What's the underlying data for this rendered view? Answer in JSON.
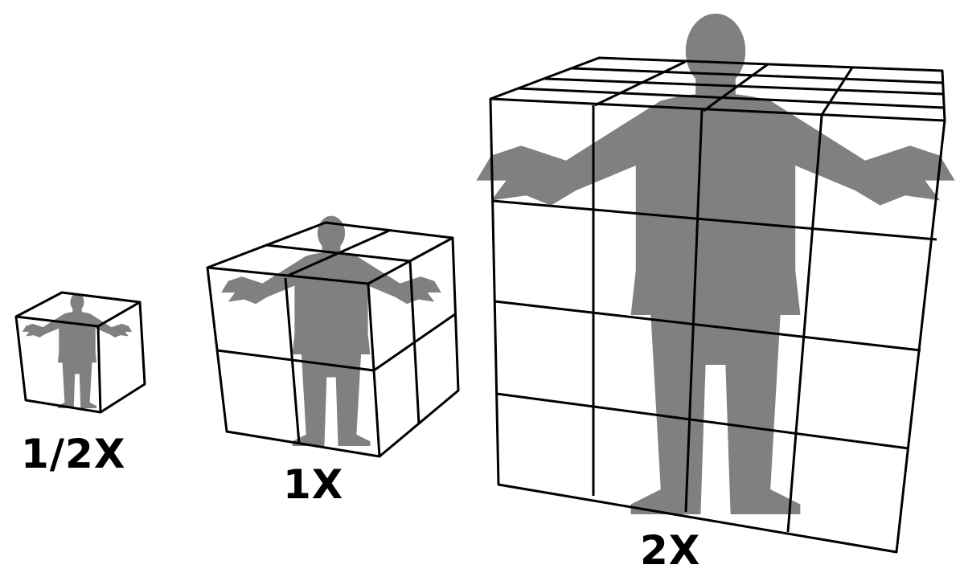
{
  "labels": {
    "half": "1/2X",
    "one": "1X",
    "two": "2X"
  },
  "colors": {
    "background": "#ffffff",
    "edges": "#000000",
    "silhouette": "#808080"
  },
  "cubes": [
    {
      "name": "half-scale-cube",
      "scale_label": "1/2X",
      "grid_divisions": 1
    },
    {
      "name": "one-scale-cube",
      "scale_label": "1X",
      "grid_divisions": 2
    },
    {
      "name": "two-scale-cube",
      "scale_label": "2X",
      "grid_divisions": 4
    }
  ]
}
